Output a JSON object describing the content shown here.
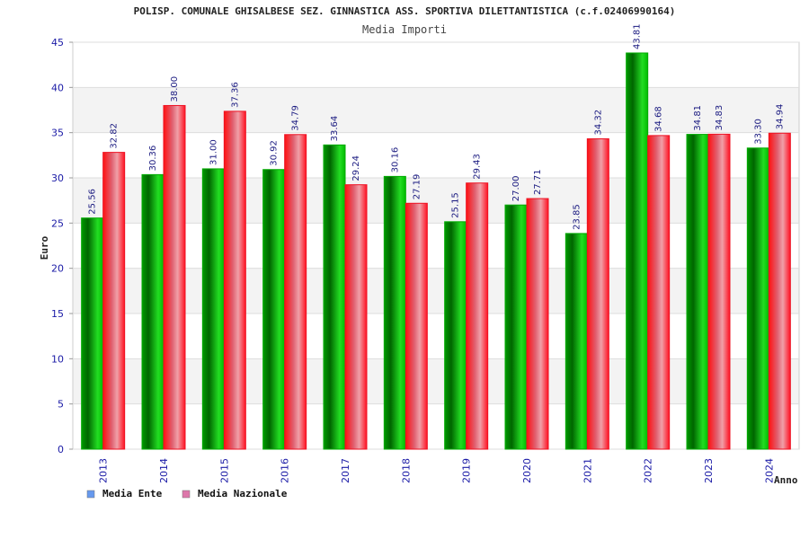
{
  "chart_data": {
    "type": "bar",
    "title": "POLISP. COMUNALE GHISALBESE SEZ. GINNASTICA ASS. SPORTIVA DILETTANTISTICA (c.f.02406990164)",
    "subtitle": "Media Importi",
    "xlabel": "Anno",
    "ylabel": "Euro",
    "ylim": [
      0,
      45
    ],
    "yticks": [
      0,
      5,
      10,
      15,
      20,
      25,
      30,
      35,
      40,
      45
    ],
    "grid": true,
    "legend_position": "bottom-left",
    "categories": [
      "2013",
      "2014",
      "2015",
      "2016",
      "2017",
      "2018",
      "2019",
      "2020",
      "2021",
      "2022",
      "2023",
      "2024"
    ],
    "series": [
      {
        "name": "Media Ente",
        "bar_color": "#00aa00",
        "legend_color": "#6699ee",
        "values": [
          25.56,
          30.36,
          31.0,
          30.92,
          33.64,
          30.16,
          25.15,
          27.0,
          23.85,
          43.81,
          34.81,
          33.3
        ],
        "labels": [
          "25.56",
          "30.36",
          "31.00",
          "30.92",
          "33.64",
          "30.16",
          "25.15",
          "27.00",
          "23.85",
          "43.81",
          "34.81",
          "33.30"
        ]
      },
      {
        "name": "Media Nazionale",
        "bar_color": "#ee1122",
        "legend_color": "#dd77aa",
        "values": [
          32.82,
          38.0,
          37.36,
          34.79,
          29.24,
          27.19,
          29.43,
          27.71,
          34.32,
          34.68,
          34.83,
          34.94
        ],
        "labels": [
          "32.82",
          "38.00",
          "37.36",
          "34.79",
          "29.24",
          "27.19",
          "29.43",
          "27.71",
          "34.32",
          "34.68",
          "34.83",
          "34.94"
        ]
      }
    ]
  }
}
